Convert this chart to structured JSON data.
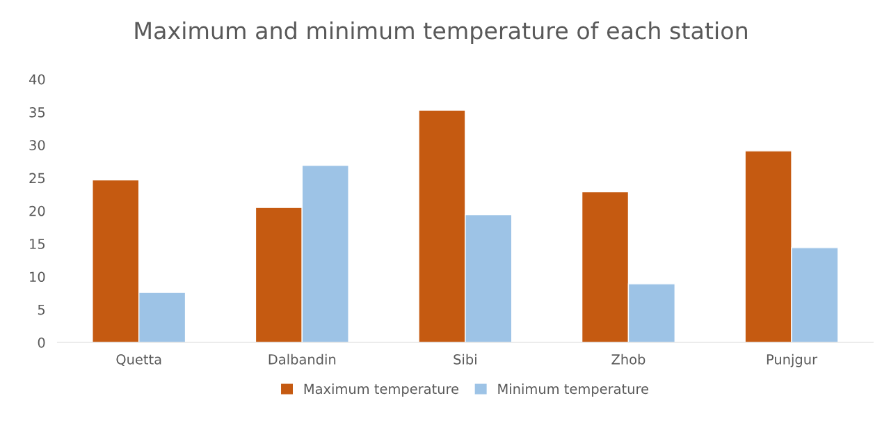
{
  "chart_data": {
    "type": "bar",
    "title": "Maximum and minimum temperature of each station",
    "categories": [
      "Quetta",
      "Dalbandin",
      "Sibi",
      "Zhob",
      "Punjgur"
    ],
    "series": [
      {
        "name": "Maximum temperature",
        "color": "#c55a11",
        "values": [
          24.7,
          20.5,
          35.3,
          22.9,
          29.1
        ]
      },
      {
        "name": "Minimum temperature",
        "color": "#9dc3e6",
        "values": [
          7.6,
          26.9,
          19.4,
          8.9,
          14.4
        ]
      }
    ],
    "ylim": [
      0,
      40
    ],
    "yticks": [
      0,
      5,
      10,
      15,
      20,
      25,
      30,
      35,
      40
    ],
    "grid": false,
    "legend": "bottom"
  }
}
